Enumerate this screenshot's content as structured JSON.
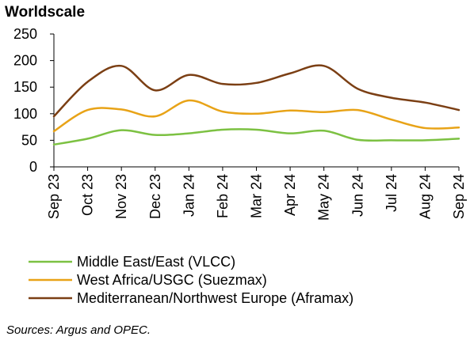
{
  "title": "Worldscale",
  "source": "Sources: Argus and OPEC.",
  "chart_data": {
    "type": "line",
    "title": "Worldscale",
    "xlabel": "",
    "ylabel": "",
    "ylim": [
      0,
      250
    ],
    "yticks": [
      0,
      50,
      100,
      150,
      200,
      250
    ],
    "grid": false,
    "legend_position": "bottom",
    "categories": [
      "Sep 23",
      "Oct 23",
      "Nov 23",
      "Dec 23",
      "Jan 24",
      "Feb 24",
      "Mar 24",
      "Apr 24",
      "May 24",
      "Jun 24",
      "Jul 24",
      "Aug 24",
      "Sep 24"
    ],
    "series": [
      {
        "name": "Middle East/East (VLCC)",
        "color": "#7cc142",
        "values": [
          42,
          53,
          69,
          60,
          63,
          70,
          70,
          63,
          68,
          51,
          50,
          50,
          53
        ]
      },
      {
        "name": "West Africa/USGC (Suezmax)",
        "color": "#e8a317",
        "values": [
          67,
          107,
          108,
          95,
          125,
          104,
          100,
          106,
          103,
          107,
          89,
          73,
          74
        ]
      },
      {
        "name": "Mediterranean/Northwest Europe (Aframax)",
        "color": "#7b3f14",
        "values": [
          95,
          160,
          190,
          144,
          173,
          156,
          158,
          176,
          190,
          147,
          130,
          121,
          107
        ]
      }
    ]
  }
}
